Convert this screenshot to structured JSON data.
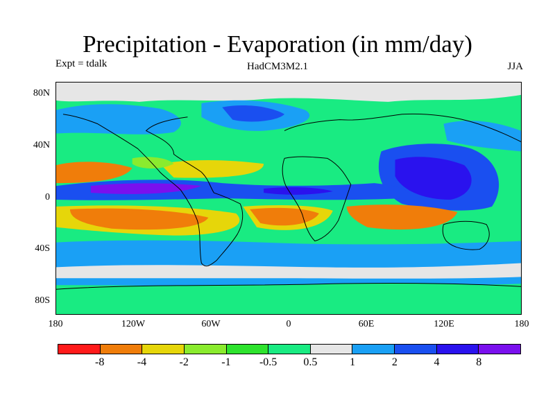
{
  "title": "Precipitation - Evaporation (in mm/day)",
  "subtitle_left": "Expt = tdalk",
  "subtitle_center": "HadCM3M2.1",
  "subtitle_right": "JJA",
  "map": {
    "projection": "cylindrical-equidistant",
    "lon_range": [
      -180,
      180
    ],
    "lat_range": [
      -90,
      90
    ],
    "y_ticks": [
      {
        "value": 80,
        "label": "80N"
      },
      {
        "value": 40,
        "label": "40N"
      },
      {
        "value": 0,
        "label": "0"
      },
      {
        "value": -40,
        "label": "40S"
      },
      {
        "value": -80,
        "label": "80S"
      }
    ],
    "x_ticks": [
      {
        "value": -180,
        "label": "180"
      },
      {
        "value": -120,
        "label": "120W"
      },
      {
        "value": -60,
        "label": "60W"
      },
      {
        "value": 0,
        "label": "0"
      },
      {
        "value": 60,
        "label": "60E"
      },
      {
        "value": 120,
        "label": "120E"
      },
      {
        "value": 180,
        "label": "180"
      }
    ]
  },
  "colorbar": {
    "colors": [
      "#ff1a1a",
      "#f07d0a",
      "#e6d60a",
      "#8aeb2e",
      "#2ee32e",
      "#19eb82",
      "#e6e6e6",
      "#1aa0f5",
      "#1a4ff0",
      "#2a12ee",
      "#7a10ee"
    ],
    "labels": [
      "-8",
      "-4",
      "-2",
      "-1",
      "-0.5",
      "0.5",
      "1",
      "2",
      "4",
      "8"
    ]
  },
  "chart_data": {
    "type": "heatmap",
    "title": "Precipitation - Evaporation (in mm/day)",
    "variable": "Precipitation - Evaporation",
    "units": "mm/day",
    "season": "JJA",
    "experiment": "tdalk",
    "model": "HadCM3M2.1",
    "x_range": [
      -180,
      180
    ],
    "y_range": [
      -90,
      90
    ],
    "contour_levels": [
      -8,
      -4,
      -2,
      -1,
      -0.5,
      0.5,
      1,
      2,
      4,
      8
    ]
  }
}
